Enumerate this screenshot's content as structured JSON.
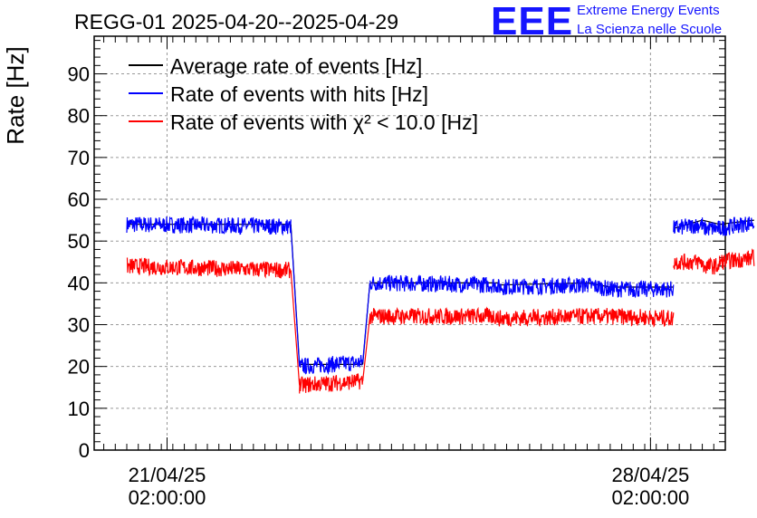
{
  "title": "REGG-01 2025-04-20--2025-04-29",
  "logo": {
    "mark": "EEE",
    "line1": "Extreme Energy Events",
    "line2": "La Scienza nelle Scuole",
    "color": "#1515ff"
  },
  "chart_data": {
    "type": "line",
    "ylabel": "Rate [Hz]",
    "xlabel": "",
    "ylim": [
      0,
      99
    ],
    "xlim": [
      "2025-04-20 00:40",
      "2025-04-29 04:00"
    ],
    "yticks": [
      0,
      10,
      20,
      30,
      40,
      50,
      60,
      70,
      80,
      90
    ],
    "xticks": [
      {
        "x": "2025-04-21 02:00",
        "label_date": "21/04/25",
        "label_time": "02:00:00"
      },
      {
        "x": "2025-04-28 02:00",
        "label_date": "28/04/25",
        "label_time": "02:00:00"
      }
    ],
    "grid": true,
    "legend_placement": "top-left",
    "series": [
      {
        "name": "Average rate of events [Hz]",
        "color": "#000000",
        "segments": [
          [
            [
              "2025-04-20 12:00",
              54
            ],
            [
              "2025-04-22 21:00",
              54
            ]
          ],
          [
            [
              "2025-04-22 21:00",
              54
            ],
            [
              "2025-04-23 00:00",
              20.5
            ]
          ],
          [
            [
              "2025-04-23 00:00",
              20.5
            ],
            [
              "2025-04-23 22:00",
              20.5
            ]
          ],
          [
            [
              "2025-04-23 22:00",
              20.5
            ],
            [
              "2025-04-24 00:30",
              40
            ]
          ],
          [
            [
              "2025-04-24 00:30",
              40
            ],
            [
              "2025-04-25 21:00",
              40
            ]
          ],
          [
            [
              "2025-04-25 21:00",
              39.5
            ],
            [
              "2025-04-27 04:00",
              40
            ]
          ],
          [
            [
              "2025-04-27 04:00",
              40
            ],
            [
              "2025-04-27 12:00",
              39
            ]
          ],
          [
            [
              "2025-04-27 12:00",
              39
            ],
            [
              "2025-04-28 10:00",
              39
            ]
          ],
          [
            [
              "2025-04-28 10:00",
              53
            ],
            [
              "2025-04-28 20:00",
              55
            ]
          ],
          [
            [
              "2025-04-28 20:00",
              55
            ],
            [
              "2025-04-29 02:00",
              54
            ]
          ],
          [
            [
              "2025-04-29 02:00",
              54
            ],
            [
              "2025-04-29 14:00",
              55
            ]
          ]
        ]
      },
      {
        "name": "Rate of events with hits [Hz]",
        "color": "#0000ff",
        "segments": [
          [
            [
              "2025-04-20 12:00",
              54
            ],
            [
              "2025-04-22 21:00",
              53.5
            ]
          ],
          [
            [
              "2025-04-22 21:00",
              53.5
            ],
            [
              "2025-04-23 00:00",
              20
            ]
          ],
          [
            [
              "2025-04-23 00:00",
              20
            ],
            [
              "2025-04-23 22:00",
              21
            ]
          ],
          [
            [
              "2025-04-23 22:00",
              21
            ],
            [
              "2025-04-24 00:30",
              40
            ]
          ],
          [
            [
              "2025-04-24 00:30",
              40
            ],
            [
              "2025-04-25 21:00",
              39.5
            ]
          ],
          [
            [
              "2025-04-25 21:00",
              39
            ],
            [
              "2025-04-27 04:00",
              39.5
            ]
          ],
          [
            [
              "2025-04-27 04:00",
              39.5
            ],
            [
              "2025-04-27 12:00",
              38.5
            ]
          ],
          [
            [
              "2025-04-27 12:00",
              38.5
            ],
            [
              "2025-04-28 10:00",
              38.5
            ]
          ],
          [
            [
              "2025-04-28 10:00",
              53
            ],
            [
              "2025-04-28 20:00",
              54
            ]
          ],
          [
            [
              "2025-04-28 20:00",
              53
            ],
            [
              "2025-04-29 02:00",
              53
            ]
          ],
          [
            [
              "2025-04-29 02:00",
              53
            ],
            [
              "2025-04-29 14:00",
              54.5
            ]
          ]
        ]
      },
      {
        "name": "Rate of events with χ² < 10.0 [Hz]",
        "color": "#ff0000",
        "segments": [
          [
            [
              "2025-04-20 12:00",
              44
            ],
            [
              "2025-04-22 21:00",
              43
            ]
          ],
          [
            [
              "2025-04-22 21:00",
              43
            ],
            [
              "2025-04-23 00:00",
              15.5
            ]
          ],
          [
            [
              "2025-04-23 00:00",
              15.5
            ],
            [
              "2025-04-23 22:00",
              16.5
            ]
          ],
          [
            [
              "2025-04-23 22:00",
              16.5
            ],
            [
              "2025-04-24 00:30",
              32
            ]
          ],
          [
            [
              "2025-04-24 00:30",
              32
            ],
            [
              "2025-04-25 21:00",
              32
            ]
          ],
          [
            [
              "2025-04-25 21:00",
              31.5
            ],
            [
              "2025-04-27 04:00",
              32
            ]
          ],
          [
            [
              "2025-04-27 04:00",
              32
            ],
            [
              "2025-04-27 12:00",
              32
            ]
          ],
          [
            [
              "2025-04-27 12:00",
              32
            ],
            [
              "2025-04-28 10:00",
              31.5
            ]
          ],
          [
            [
              "2025-04-28 10:00",
              45
            ],
            [
              "2025-04-28 20:00",
              45
            ]
          ],
          [
            [
              "2025-04-28 20:00",
              44
            ],
            [
              "2025-04-29 02:00",
              44
            ]
          ],
          [
            [
              "2025-04-29 02:00",
              45
            ],
            [
              "2025-04-29 14:00",
              46
            ]
          ]
        ]
      }
    ]
  }
}
